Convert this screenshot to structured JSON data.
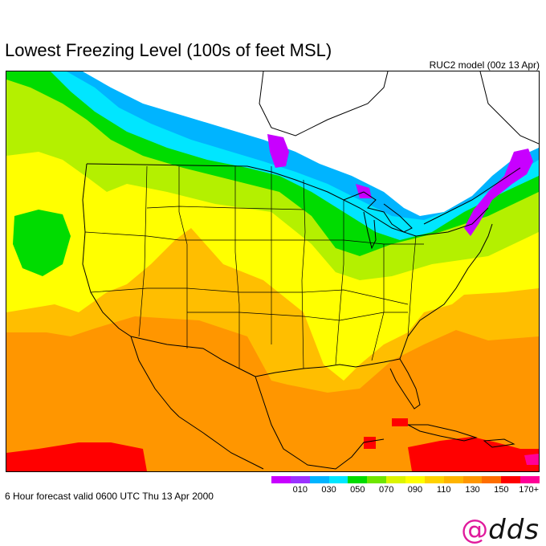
{
  "header": {
    "title": "Lowest Freezing Level (100s of feet MSL)",
    "model_run": "RUC2 model (00z 13 Apr)"
  },
  "footer": {
    "forecast_valid": "6 Hour forecast valid 0600 UTC Thu 13 Apr 2000"
  },
  "legend": {
    "colors": [
      "#c800ff",
      "#9b32ff",
      "#00b4ff",
      "#00e6ff",
      "#00dc00",
      "#6ee600",
      "#dcf500",
      "#ffff00",
      "#ffd200",
      "#ffb400",
      "#ff9600",
      "#ff6e00",
      "#ff0000",
      "#ff0096"
    ],
    "labels": [
      "010",
      "030",
      "050",
      "070",
      "090",
      "110",
      "130",
      "150",
      "170+"
    ]
  },
  "map": {
    "region": "Continental United States, southern Canada, northern Mexico, Gulf of Mexico and Caribbean",
    "field_colors": {
      "below_range": "#ffffff",
      "band_010": "#c800ff",
      "band_030": "#00b4ff",
      "band_050": "#00e6ff",
      "band_070": "#00dc00",
      "band_090": "#b4f000",
      "band_110": "#ffff00",
      "band_130": "#ffbe00",
      "band_150": "#ff9600",
      "band_170": "#ff0000"
    }
  },
  "logo": {
    "symbol": "@",
    "text": "dds"
  }
}
